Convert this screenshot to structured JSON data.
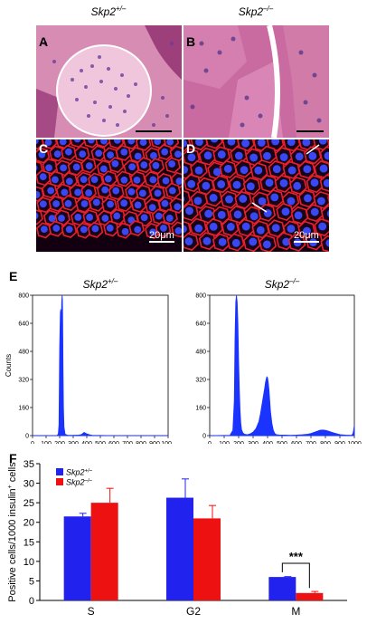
{
  "micrographs": {
    "col_left_label": "Skp2",
    "col_left_sup": "+/–",
    "col_right_label": "Skp2",
    "col_right_sup": "–/–",
    "panels": [
      "A",
      "B",
      "C",
      "D"
    ],
    "scale_c": "20μm",
    "scale_d": "20μm"
  },
  "panel_e_label": "E",
  "panel_f_label": "F",
  "chart_data": [
    {
      "type": "area",
      "title_main": "Skp2",
      "title_sup": "+/–",
      "ylabel": "Counts",
      "xlim": [
        0,
        1000
      ],
      "ylim": [
        0,
        800
      ],
      "xticks": [
        "0",
        "100",
        "200",
        "300",
        "400",
        "500",
        "600",
        "700",
        "800",
        "900",
        "1000"
      ],
      "yticks": [
        "0",
        "160",
        "320",
        "480",
        "640",
        "800"
      ],
      "x": [
        0,
        180,
        190,
        195,
        200,
        205,
        208,
        210,
        212,
        215,
        218,
        220,
        222,
        225,
        228,
        232,
        240,
        260,
        300,
        340,
        360,
        370,
        380,
        390,
        400,
        420,
        440,
        500,
        600,
        700,
        800,
        900,
        1000
      ],
      "y": [
        0,
        0,
        10,
        60,
        500,
        700,
        720,
        680,
        560,
        760,
        800,
        780,
        700,
        380,
        160,
        50,
        8,
        2,
        2,
        3,
        6,
        12,
        18,
        14,
        10,
        5,
        2,
        1,
        0,
        0,
        0,
        0,
        0
      ]
    },
    {
      "type": "area",
      "title_main": "Skp2",
      "title_sup": "–/–",
      "xlim": [
        0,
        1000
      ],
      "ylim": [
        0,
        800
      ],
      "xticks": [
        "0",
        "100",
        "200",
        "300",
        "400",
        "500",
        "600",
        "700",
        "800",
        "900",
        "1000"
      ],
      "yticks": [
        "0",
        "160",
        "320",
        "480",
        "640",
        "800"
      ],
      "x": [
        0,
        140,
        160,
        170,
        175,
        180,
        185,
        190,
        195,
        200,
        205,
        210,
        215,
        220,
        230,
        240,
        260,
        280,
        300,
        320,
        340,
        350,
        360,
        370,
        380,
        385,
        390,
        395,
        400,
        405,
        410,
        415,
        420,
        430,
        440,
        450,
        460,
        480,
        520,
        560,
        600,
        640,
        680,
        700,
        720,
        740,
        760,
        780,
        800,
        820,
        840,
        860,
        880,
        900,
        940,
        980,
        990,
        995,
        1000
      ],
      "y": [
        0,
        2,
        30,
        200,
        560,
        760,
        800,
        760,
        640,
        420,
        260,
        140,
        70,
        35,
        15,
        8,
        5,
        10,
        20,
        40,
        80,
        120,
        170,
        220,
        270,
        300,
        320,
        335,
        330,
        300,
        260,
        200,
        140,
        70,
        30,
        12,
        6,
        4,
        3,
        2,
        3,
        5,
        8,
        12,
        18,
        24,
        30,
        32,
        30,
        26,
        20,
        15,
        10,
        6,
        3,
        2,
        10,
        30,
        60
      ]
    },
    {
      "type": "bar",
      "ylabel": "Positive cells/1000 insulin",
      "ylabel_sup": "+",
      "ylabel_end": " cells",
      "categories": [
        "S",
        "G2",
        "M"
      ],
      "ylim": [
        0,
        35
      ],
      "yticks": [
        "0",
        "5",
        "10",
        "15",
        "20",
        "25",
        "30",
        "35"
      ],
      "series": [
        {
          "name": "Skp2",
          "sup": "+/–",
          "color": "#2222ee",
          "values": [
            21.5,
            26.3,
            6.0
          ],
          "errors": [
            0.8,
            4.8,
            0.1
          ]
        },
        {
          "name": "Skp2",
          "sup": "–/–",
          "color": "#ee1111",
          "values": [
            25.0,
            21.0,
            1.9
          ],
          "errors": [
            3.7,
            3.3,
            0.4
          ]
        }
      ],
      "annotation": "***"
    }
  ]
}
